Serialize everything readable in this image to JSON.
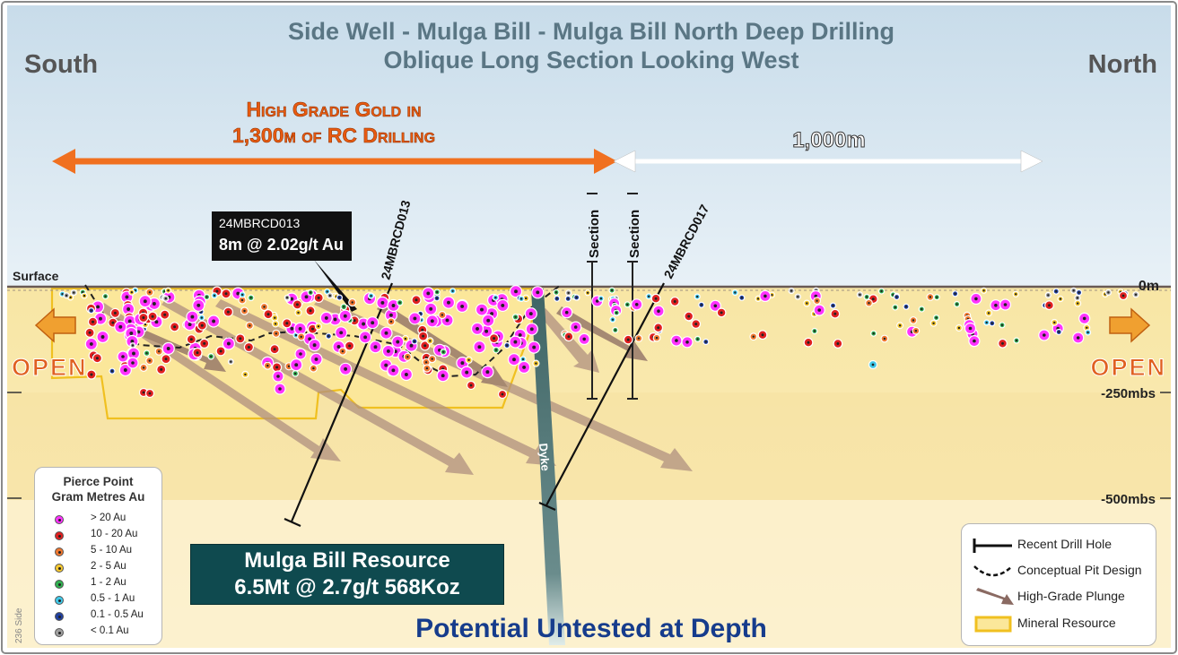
{
  "title_line1": "Side Well - Mulga Bill - Mulga Bill North Deep Drilling",
  "title_line2": "Oblique Long Section Looking West",
  "direction_left": "South",
  "direction_right": "North",
  "high_grade_line1": "High Grade Gold in",
  "high_grade_line2": "1,300m of RC Drilling",
  "distance_label": "1,000m",
  "surface_label": "Surface",
  "depth_labels": {
    "zero": "0m",
    "d250": "-250mbs",
    "d500": "-500mbs"
  },
  "open_left": "OPEN",
  "open_right": "OPEN",
  "section_label_1": "Section",
  "section_label_2": "Section",
  "hole_label_1": "24MBRCD013",
  "hole_label_2": "24MBRCD017",
  "dyke_label": "Dyke",
  "callout": {
    "hole": "24MBRCD013",
    "intercept": "8m @ 2.02g/t Au"
  },
  "resource": {
    "line1": "Mulga Bill Resource",
    "line2": "6.5Mt @ 2.7g/t 568Koz"
  },
  "bottom_caption": "Potential Untested at Depth",
  "side_tag": "236 Side",
  "pierce_legend": {
    "title_line1": "Pierce Point",
    "title_line2": "Gram Metres Au",
    "items": [
      {
        "label": "> 20 Au",
        "color": "#ff33ff"
      },
      {
        "label": "10 - 20 Au",
        "color": "#e02020"
      },
      {
        "label": "5 - 10  Au",
        "color": "#f07830"
      },
      {
        "label": "2 - 5 Au",
        "color": "#f5c830"
      },
      {
        "label": "1 - 2 Au",
        "color": "#30b050"
      },
      {
        "label": "0.5 - 1 Au",
        "color": "#40c8e8"
      },
      {
        "label": "0.1 - 0.5 Au",
        "color": "#2040a0"
      },
      {
        "label": "< 0.1 Au",
        "color": "#a0a0a0"
      }
    ]
  },
  "key_legend": {
    "items": [
      {
        "label": "Recent Drill Hole",
        "symbol": "drill-hole"
      },
      {
        "label": "Conceptual Pit Design",
        "symbol": "pit-design"
      },
      {
        "label": "High-Grade Plunge",
        "symbol": "plunge-arrow"
      },
      {
        "label": "Mineral Resource",
        "symbol": "resource-outline"
      }
    ]
  },
  "colors": {
    "orange": "#f07020",
    "sky_top": "#c8dcea",
    "sky_bottom": "#e8f1f7",
    "ground": "#f8e6a4",
    "title": "#5a7684",
    "direction": "#555555",
    "open_text": "#e06020",
    "plunge": "#b09080",
    "resource_outline": "#f0c020",
    "dyke": "#4f6f6f",
    "caption": "#163c8c"
  }
}
